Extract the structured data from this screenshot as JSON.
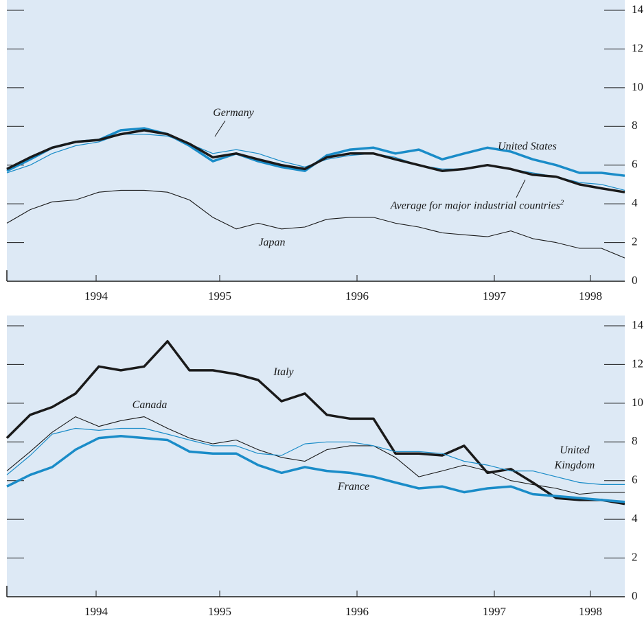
{
  "chart_data": [
    {
      "type": "line",
      "x": [
        1993.95,
        1994.12,
        1994.28,
        1994.45,
        1994.62,
        1994.78,
        1994.95,
        1995.12,
        1995.28,
        1995.45,
        1995.62,
        1995.78,
        1995.95,
        1996.12,
        1996.28,
        1996.45,
        1996.62,
        1996.78,
        1996.95,
        1997.12,
        1997.28,
        1997.45,
        1997.62,
        1997.78,
        1997.95,
        1998.12,
        1998.28,
        1998.45
      ],
      "xlim": [
        1993.95,
        1998.45
      ],
      "xticks": [
        {
          "value": 1994.6,
          "label": "1994"
        },
        {
          "value": 1995.5,
          "label": "1995"
        },
        {
          "value": 1996.5,
          "label": "1996"
        },
        {
          "value": 1997.5,
          "label": "1997"
        },
        {
          "value": 1998.2,
          "label": "1998"
        }
      ],
      "ylim": [
        0,
        14
      ],
      "yticks": [
        0,
        2,
        4,
        6,
        8,
        10,
        12,
        14
      ],
      "series": [
        {
          "name": "Germany",
          "color": "#1a8cc8",
          "width": 1.2,
          "values": [
            5.6,
            6.0,
            6.6,
            7.0,
            7.2,
            7.6,
            7.6,
            7.5,
            7.1,
            6.6,
            6.8,
            6.6,
            6.2,
            5.9,
            6.3,
            6.5,
            6.6,
            6.4,
            6.0,
            5.8,
            5.8,
            6.0,
            5.8,
            5.6,
            5.4,
            5.1,
            5.0,
            4.7
          ]
        },
        {
          "name": "United States",
          "color": "#1a8cc8",
          "width": 3.5,
          "values": [
            5.7,
            6.3,
            6.9,
            7.2,
            7.3,
            7.8,
            7.9,
            7.6,
            7.0,
            6.2,
            6.6,
            6.2,
            5.9,
            5.7,
            6.5,
            6.8,
            6.9,
            6.6,
            6.8,
            6.3,
            6.6,
            6.9,
            6.7,
            6.3,
            6.0,
            5.6,
            5.6,
            5.45
          ]
        },
        {
          "name": "Average for major industrial countries",
          "superscript": "2",
          "color": "#1a1a1a",
          "width": 3.5,
          "values": [
            5.8,
            6.4,
            6.9,
            7.2,
            7.3,
            7.6,
            7.8,
            7.6,
            7.1,
            6.4,
            6.6,
            6.3,
            6.0,
            5.8,
            6.4,
            6.6,
            6.6,
            6.3,
            6.0,
            5.7,
            5.8,
            6.0,
            5.8,
            5.5,
            5.4,
            5.0,
            4.8,
            4.6
          ]
        },
        {
          "name": "Japan",
          "color": "#1a1a1a",
          "width": 1.1,
          "values": [
            3.0,
            3.7,
            4.1,
            4.2,
            4.6,
            4.7,
            4.7,
            4.6,
            4.2,
            3.3,
            2.7,
            3.0,
            2.7,
            2.8,
            3.2,
            3.3,
            3.3,
            3.0,
            2.8,
            2.5,
            2.4,
            2.3,
            2.6,
            2.2,
            2.0,
            1.7,
            1.7,
            1.2
          ]
        }
      ]
    },
    {
      "type": "line",
      "x": [
        1993.95,
        1994.12,
        1994.28,
        1994.45,
        1994.62,
        1994.78,
        1994.95,
        1995.12,
        1995.28,
        1995.45,
        1995.62,
        1995.78,
        1995.95,
        1996.12,
        1996.28,
        1996.45,
        1996.62,
        1996.78,
        1996.95,
        1997.12,
        1997.28,
        1997.45,
        1997.62,
        1997.78,
        1997.95,
        1998.12,
        1998.28,
        1998.45
      ],
      "xlim": [
        1993.95,
        1998.45
      ],
      "xticks": [
        {
          "value": 1994.6,
          "label": "1994"
        },
        {
          "value": 1995.5,
          "label": "1995"
        },
        {
          "value": 1996.5,
          "label": "1996"
        },
        {
          "value": 1997.5,
          "label": "1997"
        },
        {
          "value": 1998.2,
          "label": "1998"
        }
      ],
      "ylim": [
        0,
        14
      ],
      "yticks": [
        0,
        2,
        4,
        6,
        8,
        10,
        12,
        14
      ],
      "series": [
        {
          "name": "Italy",
          "color": "#1a1a1a",
          "width": 3.5,
          "values": [
            8.2,
            9.4,
            9.8,
            10.5,
            11.9,
            11.7,
            11.9,
            13.2,
            11.7,
            11.7,
            11.5,
            11.2,
            10.1,
            10.5,
            9.4,
            9.2,
            9.2,
            7.4,
            7.4,
            7.3,
            7.8,
            6.4,
            6.6,
            5.9,
            5.1,
            5.0,
            5.0,
            4.8
          ]
        },
        {
          "name": "Canada",
          "color": "#1a1a1a",
          "width": 1.1,
          "values": [
            6.5,
            7.5,
            8.5,
            9.3,
            8.8,
            9.1,
            9.3,
            8.7,
            8.2,
            7.9,
            8.1,
            7.6,
            7.2,
            7.0,
            7.6,
            7.8,
            7.8,
            7.2,
            6.2,
            6.5,
            6.8,
            6.5,
            6.0,
            5.8,
            5.6,
            5.3,
            5.4,
            5.4
          ]
        },
        {
          "name": "United Kingdom",
          "color": "#1a8cc8",
          "width": 1.2,
          "values": [
            6.3,
            7.3,
            8.4,
            8.7,
            8.6,
            8.7,
            8.7,
            8.4,
            8.1,
            7.8,
            7.8,
            7.4,
            7.3,
            7.9,
            8.0,
            8.0,
            7.8,
            7.5,
            7.5,
            7.4,
            7.0,
            6.8,
            6.5,
            6.5,
            6.2,
            5.9,
            5.8,
            5.8
          ]
        },
        {
          "name": "France",
          "color": "#1a8cc8",
          "width": 3.5,
          "values": [
            5.7,
            6.3,
            6.7,
            7.6,
            8.2,
            8.3,
            8.2,
            8.1,
            7.5,
            7.4,
            7.4,
            6.8,
            6.4,
            6.7,
            6.5,
            6.4,
            6.2,
            5.9,
            5.6,
            5.7,
            5.4,
            5.6,
            5.7,
            5.3,
            5.2,
            5.1,
            5.0,
            4.9
          ]
        }
      ]
    }
  ]
}
